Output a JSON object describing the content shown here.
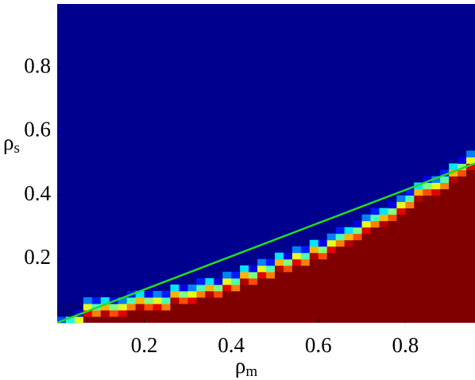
{
  "chart_data": {
    "type": "heatmap",
    "xlabel": "ρ",
    "xlabel_sub": "m",
    "ylabel": "ρ",
    "ylabel_sub": "s",
    "xlim": [
      0,
      0.96
    ],
    "ylim": [
      0,
      1
    ],
    "xticks": [
      0.2,
      0.4,
      0.6,
      0.8
    ],
    "yticks": [
      0.2,
      0.4,
      0.6,
      0.8
    ],
    "colormap": "jet",
    "low_color": "#00008f",
    "high_color": "#800000",
    "x": [
      0.01,
      0.03,
      0.05,
      0.07,
      0.09,
      0.11,
      0.13,
      0.15,
      0.17,
      0.19,
      0.21,
      0.23,
      0.25,
      0.27,
      0.29,
      0.31,
      0.33,
      0.35,
      0.37,
      0.39,
      0.41,
      0.43,
      0.45,
      0.47,
      0.49,
      0.51,
      0.53,
      0.55,
      0.57,
      0.59,
      0.61,
      0.63,
      0.65,
      0.67,
      0.69,
      0.71,
      0.73,
      0.75,
      0.77,
      0.79,
      0.81,
      0.83,
      0.85,
      0.87,
      0.89,
      0.91,
      0.93,
      0.95
    ],
    "red_top": [
      0,
      0,
      0,
      0.02,
      0.02,
      0.02,
      0.02,
      0.02,
      0.04,
      0.04,
      0.04,
      0.04,
      0.04,
      0.06,
      0.06,
      0.06,
      0.08,
      0.08,
      0.08,
      0.1,
      0.1,
      0.12,
      0.12,
      0.14,
      0.14,
      0.16,
      0.16,
      0.18,
      0.18,
      0.2,
      0.2,
      0.22,
      0.24,
      0.24,
      0.26,
      0.28,
      0.3,
      0.3,
      0.32,
      0.34,
      0.36,
      0.38,
      0.4,
      0.4,
      0.42,
      0.44,
      0.46,
      0.48
    ],
    "band": [
      [
        0.2,
        0,
        0
      ],
      [
        0.4,
        0,
        0
      ],
      [
        0.6,
        0.1,
        0
      ],
      [
        0.9,
        0.6,
        0.25
      ],
      [
        0.75,
        0.45,
        0.15
      ],
      [
        0.95,
        0.7,
        0.35
      ],
      [
        0.8,
        0.5,
        0.1
      ],
      [
        0.9,
        0.6,
        0.25
      ],
      [
        0.75,
        0.45,
        0.15
      ],
      [
        0.95,
        0.7,
        0.35
      ],
      [
        0.8,
        0.5,
        0.1
      ],
      [
        0.9,
        0.6,
        0.25
      ],
      [
        0.75,
        0.45,
        0.15
      ],
      [
        0.95,
        0.7,
        0.35
      ],
      [
        0.8,
        0.5,
        0.1
      ],
      [
        0.9,
        0.6,
        0.25
      ],
      [
        0.75,
        0.45,
        0.15
      ],
      [
        0.95,
        0.7,
        0.35
      ],
      [
        0.8,
        0.5,
        0.1
      ],
      [
        0.9,
        0.6,
        0.25
      ],
      [
        0.75,
        0.45,
        0.15
      ],
      [
        0.95,
        0.7,
        0.35
      ],
      [
        0.8,
        0.5,
        0.1
      ],
      [
        0.9,
        0.6,
        0.25
      ],
      [
        0.75,
        0.45,
        0.15
      ],
      [
        0.95,
        0.7,
        0.35
      ],
      [
        0.8,
        0.5,
        0.1
      ],
      [
        0.9,
        0.6,
        0.25
      ],
      [
        0.75,
        0.45,
        0.15
      ],
      [
        0.95,
        0.7,
        0.35
      ],
      [
        0.8,
        0.5,
        0.1
      ],
      [
        0.9,
        0.6,
        0.25
      ],
      [
        0.75,
        0.45,
        0.15
      ],
      [
        0.95,
        0.7,
        0.35
      ],
      [
        0.8,
        0.5,
        0.1
      ],
      [
        0.9,
        0.6,
        0.25
      ],
      [
        0.75,
        0.45,
        0.15
      ],
      [
        0.95,
        0.7,
        0.35
      ],
      [
        0.8,
        0.5,
        0.1
      ],
      [
        0.9,
        0.6,
        0.25
      ],
      [
        0.75,
        0.45,
        0.15
      ],
      [
        0.95,
        0.7,
        0.35
      ],
      [
        0.8,
        0.5,
        0.1
      ],
      [
        0.9,
        0.6,
        0.25
      ],
      [
        0.75,
        0.45,
        0.15
      ],
      [
        0.95,
        0.7,
        0.35
      ],
      [
        0.8,
        0.5,
        0.1
      ],
      [
        0.9,
        0.6,
        0.25
      ]
    ],
    "line": {
      "color": "#22dd22",
      "x": [
        0,
        0.96
      ],
      "y": [
        0,
        0.5
      ]
    }
  }
}
